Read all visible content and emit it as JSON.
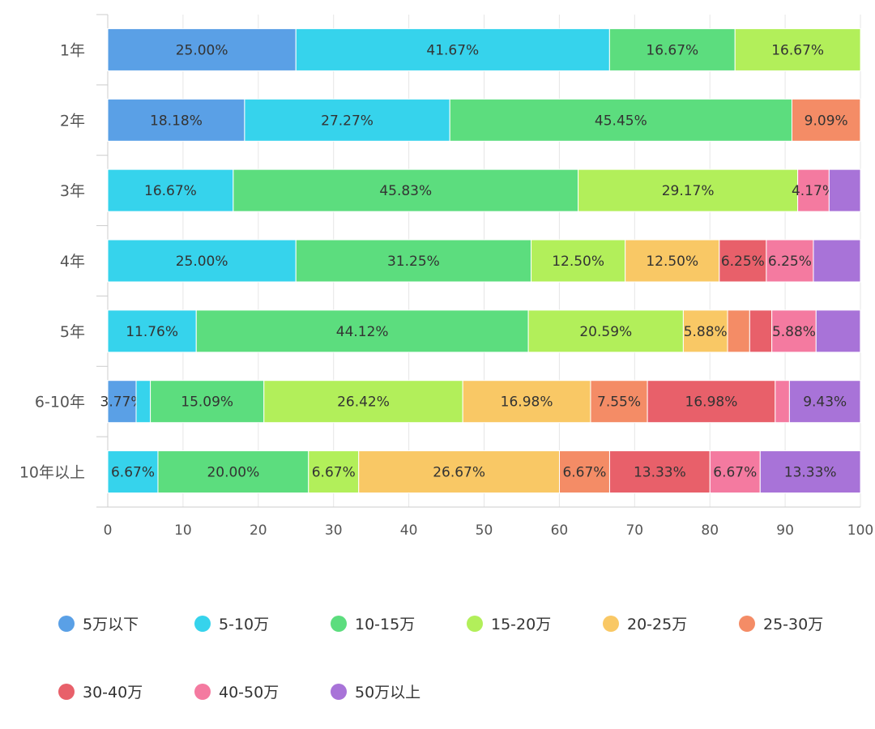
{
  "chart_data": {
    "type": "bar",
    "orientation": "horizontal",
    "stacked": true,
    "title": "",
    "xlabel": "",
    "ylabel": "",
    "xlim": [
      0,
      100
    ],
    "x_ticks": [
      0,
      10,
      20,
      30,
      40,
      50,
      60,
      70,
      80,
      90,
      100
    ],
    "grid": true,
    "legend_position": "bottom",
    "categories": [
      "1年",
      "2年",
      "3年",
      "4年",
      "5年",
      "6-10年",
      "10年以上"
    ],
    "series": [
      {
        "name": "5万以下",
        "color": "#5aa0e6",
        "values": [
          25.0,
          18.18,
          0,
          0,
          0,
          3.77,
          0
        ],
        "labels": [
          "25.00%",
          "18.18%",
          "",
          "",
          "",
          "3.77%",
          ""
        ]
      },
      {
        "name": "5-10万",
        "color": "#36d3ec",
        "values": [
          41.67,
          27.27,
          16.67,
          25.0,
          11.76,
          1.89,
          6.67
        ],
        "labels": [
          "41.67%",
          "27.27%",
          "16.67%",
          "25.00%",
          "11.76%",
          "",
          "6.67%"
        ]
      },
      {
        "name": "10-15万",
        "color": "#5cdd7e",
        "values": [
          16.67,
          45.45,
          45.83,
          31.25,
          44.12,
          15.09,
          20.0
        ],
        "labels": [
          "16.67%",
          "45.45%",
          "45.83%",
          "31.25%",
          "44.12%",
          "15.09%",
          "20.00%"
        ]
      },
      {
        "name": "15-20万",
        "color": "#b2ef5a",
        "values": [
          16.67,
          0,
          29.17,
          12.5,
          20.59,
          26.42,
          6.67
        ],
        "labels": [
          "16.67%",
          "",
          "29.17%",
          "12.50%",
          "20.59%",
          "26.42%",
          "6.67%"
        ]
      },
      {
        "name": "20-25万",
        "color": "#f9c865",
        "values": [
          0,
          0,
          0,
          12.5,
          5.88,
          16.98,
          26.67
        ],
        "labels": [
          "",
          "",
          "",
          "12.50%",
          "5.88%",
          "16.98%",
          "26.67%"
        ]
      },
      {
        "name": "25-30万",
        "color": "#f48c66",
        "values": [
          0,
          9.09,
          0,
          0,
          2.94,
          7.55,
          6.67
        ],
        "labels": [
          "",
          "9.09%",
          "",
          "",
          "",
          "7.55%",
          "6.67%"
        ]
      },
      {
        "name": "30-40万",
        "color": "#e8606a",
        "values": [
          0,
          0,
          0,
          6.25,
          2.94,
          16.98,
          13.33
        ],
        "labels": [
          "",
          "",
          "",
          "6.25%",
          "",
          "16.98%",
          "13.33%"
        ]
      },
      {
        "name": "40-50万",
        "color": "#f47aa0",
        "values": [
          0,
          0,
          4.17,
          6.25,
          5.88,
          1.89,
          6.67
        ],
        "labels": [
          "",
          "",
          "4.17%",
          "6.25%",
          "5.88%",
          "",
          "6.67%"
        ]
      },
      {
        "name": "50万以上",
        "color": "#a873d8",
        "values": [
          0,
          0,
          4.17,
          6.25,
          5.88,
          9.43,
          13.33
        ],
        "labels": [
          "",
          "",
          "",
          "",
          "",
          "9.43%",
          "13.33%"
        ]
      }
    ]
  }
}
